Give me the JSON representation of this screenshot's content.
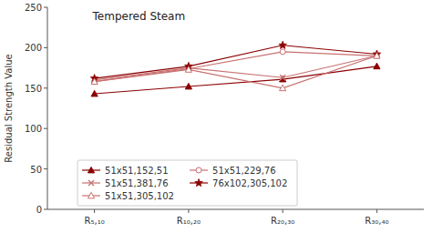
{
  "chart_data": {
    "type": "line",
    "title": "Tempered Steam",
    "ylabel": "Residual Strength Value",
    "categories": [
      "R₅,₁₀",
      "R₁₀,₂₀",
      "R₂₀,₃₀",
      "R₃₀,₄₀"
    ],
    "ylim": [
      0,
      250
    ],
    "yticks": [
      0,
      50,
      100,
      150,
      200,
      250
    ],
    "grid": false,
    "legend": "lower left",
    "series": [
      {
        "name": "51x51,152,51",
        "color": "#8B0000",
        "marker": "triangle",
        "values": [
          143,
          152,
          161,
          177
        ]
      },
      {
        "name": "51x51,229,76",
        "color": "#c87070",
        "marker": "circle-open",
        "values": [
          158,
          174,
          195,
          190
        ]
      },
      {
        "name": "51x51,381,76",
        "color": "#c87070",
        "marker": "x",
        "values": [
          160,
          175,
          163,
          190
        ]
      },
      {
        "name": "76x102,305,102",
        "color": "#8B0000",
        "marker": "star",
        "values": [
          162,
          177,
          203,
          192
        ]
      },
      {
        "name": "51x51,305,102",
        "color": "#c87070",
        "marker": "triangle-open",
        "values": [
          158,
          173,
          150,
          190
        ]
      }
    ]
  }
}
